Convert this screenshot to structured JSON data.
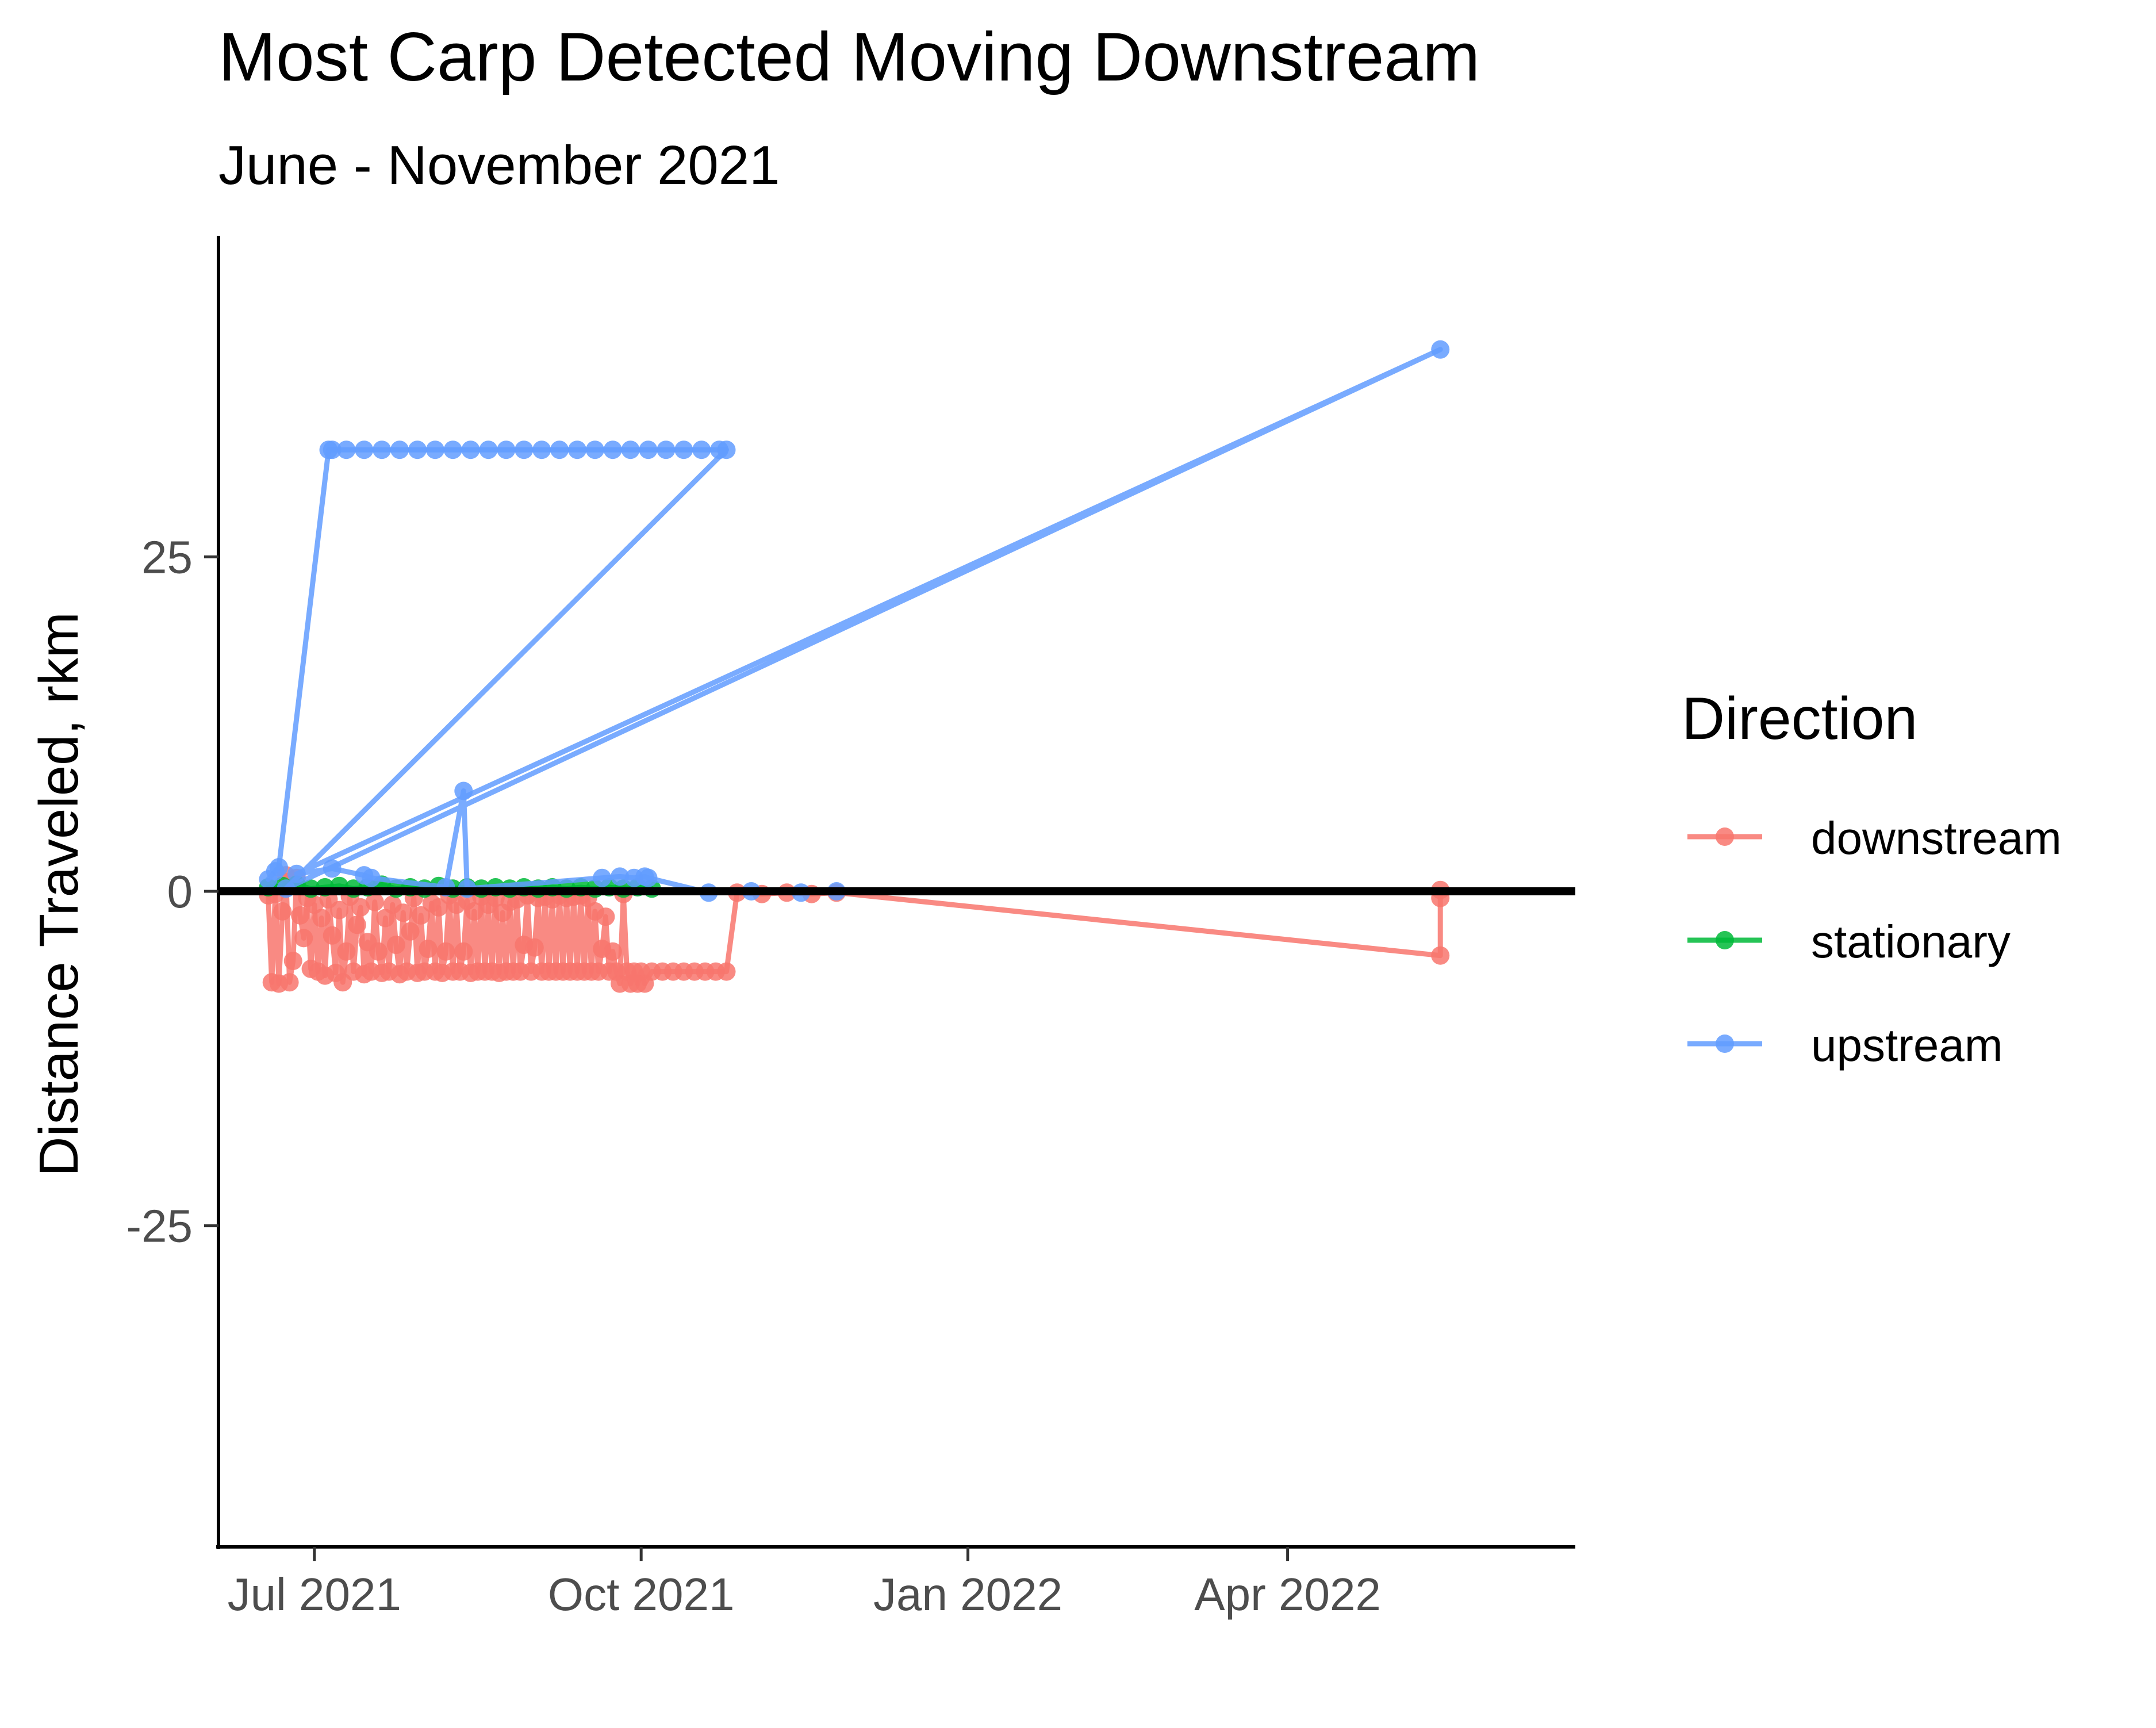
{
  "chart_data": {
    "type": "line",
    "title": "Most Carp Detected Moving Downstream",
    "subtitle": "June - November 2021",
    "ylabel": "Distance Traveled, rkm",
    "xlabel": "",
    "xlim": [
      "2021-06-04",
      "2022-06-21"
    ],
    "ylim": [
      -49,
      49
    ],
    "x_ticks": [
      {
        "date": "2021-07-01",
        "label": "Jul 2021"
      },
      {
        "date": "2021-10-01",
        "label": "Oct 2021"
      },
      {
        "date": "2022-01-01",
        "label": "Jan 2022"
      },
      {
        "date": "2022-04-01",
        "label": "Apr 2022"
      }
    ],
    "y_ticks": [
      {
        "value": 25,
        "label": "25"
      },
      {
        "value": 0,
        "label": "0"
      },
      {
        "value": -25,
        "label": "-25"
      }
    ],
    "reference_line": {
      "y": 0,
      "color": "#000000"
    },
    "grid": false,
    "legend": {
      "title": "Direction",
      "position": "right"
    },
    "series": [
      {
        "name": "downstream",
        "color": "#F8766D",
        "points": [
          {
            "x": "2021-06-18",
            "y": -0.3
          },
          {
            "x": "2021-06-19",
            "y": -6.8
          },
          {
            "x": "2021-06-20",
            "y": -0.2
          },
          {
            "x": "2021-06-21",
            "y": -6.9
          },
          {
            "x": "2021-06-22",
            "y": -1.5
          },
          {
            "x": "2021-06-23",
            "y": 1.2
          },
          {
            "x": "2021-06-24",
            "y": -6.8
          },
          {
            "x": "2021-06-25",
            "y": -5.2
          },
          {
            "x": "2021-06-26",
            "y": 1.0
          },
          {
            "x": "2021-06-27",
            "y": -1.8
          },
          {
            "x": "2021-06-28",
            "y": -3.5
          },
          {
            "x": "2021-06-29",
            "y": -0.5
          },
          {
            "x": "2021-06-30",
            "y": -5.8
          },
          {
            "x": "2021-07-01",
            "y": -1.0
          },
          {
            "x": "2021-07-02",
            "y": -6.0
          },
          {
            "x": "2021-07-03",
            "y": -2.0
          },
          {
            "x": "2021-07-04",
            "y": -6.3
          },
          {
            "x": "2021-07-05",
            "y": -0.6
          },
          {
            "x": "2021-07-06",
            "y": -3.3
          },
          {
            "x": "2021-07-07",
            "y": -6.1
          },
          {
            "x": "2021-07-08",
            "y": -1.4
          },
          {
            "x": "2021-07-09",
            "y": -6.8
          },
          {
            "x": "2021-07-10",
            "y": -4.5
          },
          {
            "x": "2021-07-11",
            "y": -0.4
          },
          {
            "x": "2021-07-12",
            "y": -6.0
          },
          {
            "x": "2021-07-13",
            "y": -2.5
          },
          {
            "x": "2021-07-14",
            "y": -1.2
          },
          {
            "x": "2021-07-15",
            "y": -6.2
          },
          {
            "x": "2021-07-16",
            "y": -3.8
          },
          {
            "x": "2021-07-17",
            "y": -6.0
          },
          {
            "x": "2021-07-18",
            "y": -0.8
          },
          {
            "x": "2021-07-19",
            "y": -4.5
          },
          {
            "x": "2021-07-20",
            "y": -6.1
          },
          {
            "x": "2021-07-21",
            "y": -2.0
          },
          {
            "x": "2021-07-22",
            "y": -6.0
          },
          {
            "x": "2021-07-23",
            "y": -1.0
          },
          {
            "x": "2021-07-24",
            "y": -4.0
          },
          {
            "x": "2021-07-25",
            "y": -6.2
          },
          {
            "x": "2021-07-26",
            "y": -1.6
          },
          {
            "x": "2021-07-27",
            "y": -6.0
          },
          {
            "x": "2021-07-28",
            "y": -3.0
          },
          {
            "x": "2021-07-29",
            "y": -0.5
          },
          {
            "x": "2021-07-30",
            "y": -6.1
          },
          {
            "x": "2021-07-31",
            "y": -1.8
          },
          {
            "x": "2021-08-01",
            "y": -6.0
          },
          {
            "x": "2021-08-02",
            "y": -4.3
          },
          {
            "x": "2021-08-03",
            "y": -0.9
          },
          {
            "x": "2021-08-04",
            "y": -6.0
          },
          {
            "x": "2021-08-05",
            "y": -1.2
          },
          {
            "x": "2021-08-06",
            "y": -6.1
          },
          {
            "x": "2021-08-07",
            "y": -4.5
          },
          {
            "x": "2021-08-08",
            "y": -0.3
          },
          {
            "x": "2021-08-09",
            "y": -6.0
          },
          {
            "x": "2021-08-10",
            "y": -1.0
          },
          {
            "x": "2021-08-11",
            "y": -6.0
          },
          {
            "x": "2021-08-12",
            "y": -4.5
          },
          {
            "x": "2021-08-13",
            "y": -0.7
          },
          {
            "x": "2021-08-14",
            "y": -6.1
          },
          {
            "x": "2021-08-15",
            "y": -1.5
          },
          {
            "x": "2021-08-16",
            "y": -6.0
          },
          {
            "x": "2021-08-17",
            "y": -0.4
          },
          {
            "x": "2021-08-18",
            "y": -6.0
          },
          {
            "x": "2021-08-19",
            "y": -1.0
          },
          {
            "x": "2021-08-20",
            "y": -6.0
          },
          {
            "x": "2021-08-21",
            "y": -0.5
          },
          {
            "x": "2021-08-22",
            "y": -6.1
          },
          {
            "x": "2021-08-23",
            "y": -1.6
          },
          {
            "x": "2021-08-24",
            "y": -6.0
          },
          {
            "x": "2021-08-25",
            "y": -0.8
          },
          {
            "x": "2021-08-26",
            "y": -6.0
          },
          {
            "x": "2021-08-27",
            "y": -0.6
          },
          {
            "x": "2021-08-28",
            "y": -6.0
          },
          {
            "x": "2021-08-29",
            "y": -4.0
          },
          {
            "x": "2021-08-30",
            "y": -0.3
          },
          {
            "x": "2021-08-31",
            "y": -6.0
          },
          {
            "x": "2021-09-01",
            "y": -4.2
          },
          {
            "x": "2021-09-02",
            "y": -0.5
          },
          {
            "x": "2021-09-03",
            "y": -6.0
          },
          {
            "x": "2021-09-04",
            "y": -0.4
          },
          {
            "x": "2021-09-05",
            "y": -6.0
          },
          {
            "x": "2021-09-06",
            "y": -0.6
          },
          {
            "x": "2021-09-07",
            "y": -6.0
          },
          {
            "x": "2021-09-08",
            "y": -0.3
          },
          {
            "x": "2021-09-09",
            "y": -6.0
          },
          {
            "x": "2021-09-10",
            "y": -0.5
          },
          {
            "x": "2021-09-11",
            "y": -6.0
          },
          {
            "x": "2021-09-12",
            "y": -0.4
          },
          {
            "x": "2021-09-13",
            "y": -6.0
          },
          {
            "x": "2021-09-14",
            "y": -0.3
          },
          {
            "x": "2021-09-15",
            "y": -6.0
          },
          {
            "x": "2021-09-16",
            "y": -0.5
          },
          {
            "x": "2021-09-17",
            "y": -6.0
          },
          {
            "x": "2021-09-18",
            "y": -1.5
          },
          {
            "x": "2021-09-19",
            "y": -6.0
          },
          {
            "x": "2021-09-20",
            "y": -4.3
          },
          {
            "x": "2021-09-21",
            "y": -1.9
          },
          {
            "x": "2021-09-22",
            "y": -6.0
          },
          {
            "x": "2021-09-23",
            "y": -4.5
          },
          {
            "x": "2021-09-24",
            "y": -6.0
          },
          {
            "x": "2021-09-25",
            "y": -6.9
          },
          {
            "x": "2021-09-26",
            "y": -0.2
          },
          {
            "x": "2021-09-27",
            "y": -6.0
          },
          {
            "x": "2021-09-28",
            "y": -6.9
          },
          {
            "x": "2021-09-29",
            "y": -6.0
          },
          {
            "x": "2021-09-30",
            "y": -6.9
          },
          {
            "x": "2021-10-01",
            "y": -6.0
          },
          {
            "x": "2021-10-02",
            "y": -6.9
          },
          {
            "x": "2021-10-04",
            "y": -6.0
          },
          {
            "x": "2021-10-07",
            "y": -6.0
          },
          {
            "x": "2021-10-10",
            "y": -6.0
          },
          {
            "x": "2021-10-13",
            "y": -6.0
          },
          {
            "x": "2021-10-16",
            "y": -6.0
          },
          {
            "x": "2021-10-19",
            "y": -6.0
          },
          {
            "x": "2021-10-22",
            "y": -6.0
          },
          {
            "x": "2021-10-25",
            "y": -6.0
          },
          {
            "x": "2021-10-28",
            "y": -0.1
          },
          {
            "x": "2021-11-04",
            "y": -0.2
          },
          {
            "x": "2021-11-11",
            "y": -0.1
          },
          {
            "x": "2021-11-18",
            "y": -0.2
          },
          {
            "x": "2021-11-25",
            "y": -0.1
          },
          {
            "x": "2022-05-14",
            "y": -4.8
          },
          {
            "x": "2022-05-14",
            "y": -0.5
          },
          {
            "x": "2022-05-14",
            "y": 0.1
          }
        ]
      },
      {
        "name": "stationary",
        "color": "#00BA38",
        "points": [
          {
            "x": "2021-06-18",
            "y": 0.3
          },
          {
            "x": "2021-06-22",
            "y": 0.4
          },
          {
            "x": "2021-06-26",
            "y": 0.5
          },
          {
            "x": "2021-06-30",
            "y": 0.2
          },
          {
            "x": "2021-07-04",
            "y": 0.3
          },
          {
            "x": "2021-07-08",
            "y": 0.4
          },
          {
            "x": "2021-07-12",
            "y": 0.2
          },
          {
            "x": "2021-07-16",
            "y": 0.3
          },
          {
            "x": "2021-07-20",
            "y": 0.5
          },
          {
            "x": "2021-07-24",
            "y": 0.2
          },
          {
            "x": "2021-07-28",
            "y": 0.3
          },
          {
            "x": "2021-08-01",
            "y": 0.2
          },
          {
            "x": "2021-08-05",
            "y": 0.4
          },
          {
            "x": "2021-08-09",
            "y": 0.2
          },
          {
            "x": "2021-08-13",
            "y": 0.3
          },
          {
            "x": "2021-08-17",
            "y": 0.2
          },
          {
            "x": "2021-08-21",
            "y": 0.3
          },
          {
            "x": "2021-08-25",
            "y": 0.2
          },
          {
            "x": "2021-08-29",
            "y": 0.3
          },
          {
            "x": "2021-09-02",
            "y": 0.2
          },
          {
            "x": "2021-09-06",
            "y": 0.3
          },
          {
            "x": "2021-09-10",
            "y": 0.2
          },
          {
            "x": "2021-09-14",
            "y": 0.3
          },
          {
            "x": "2021-09-18",
            "y": 0.2
          },
          {
            "x": "2021-09-22",
            "y": 0.3
          },
          {
            "x": "2021-09-26",
            "y": 0.2
          },
          {
            "x": "2021-09-30",
            "y": 0.3
          },
          {
            "x": "2021-10-04",
            "y": 0.2
          }
        ]
      },
      {
        "name": "upstream",
        "color": "#619CFF",
        "points": [
          {
            "x": "2021-06-18",
            "y": 0.9
          },
          {
            "x": "2021-06-20",
            "y": 1.5
          },
          {
            "x": "2021-06-21",
            "y": 1.8
          },
          {
            "x": "2021-07-05",
            "y": 33.0
          },
          {
            "x": "2021-07-06",
            "y": 33.0
          },
          {
            "x": "2021-07-10",
            "y": 33.0
          },
          {
            "x": "2021-07-15",
            "y": 33.0
          },
          {
            "x": "2021-07-20",
            "y": 33.0
          },
          {
            "x": "2021-07-25",
            "y": 33.0
          },
          {
            "x": "2021-07-30",
            "y": 33.0
          },
          {
            "x": "2021-08-04",
            "y": 33.0
          },
          {
            "x": "2021-08-09",
            "y": 33.0
          },
          {
            "x": "2021-08-14",
            "y": 33.0
          },
          {
            "x": "2021-08-19",
            "y": 33.0
          },
          {
            "x": "2021-08-24",
            "y": 33.0
          },
          {
            "x": "2021-08-29",
            "y": 33.0
          },
          {
            "x": "2021-09-03",
            "y": 33.0
          },
          {
            "x": "2021-09-08",
            "y": 33.0
          },
          {
            "x": "2021-09-13",
            "y": 33.0
          },
          {
            "x": "2021-09-18",
            "y": 33.0
          },
          {
            "x": "2021-09-23",
            "y": 33.0
          },
          {
            "x": "2021-09-28",
            "y": 33.0
          },
          {
            "x": "2021-10-03",
            "y": 33.0
          },
          {
            "x": "2021-10-08",
            "y": 33.0
          },
          {
            "x": "2021-10-13",
            "y": 33.0
          },
          {
            "x": "2021-10-18",
            "y": 33.0
          },
          {
            "x": "2021-10-23",
            "y": 33.0
          },
          {
            "x": "2021-10-25",
            "y": 33.0
          },
          {
            "x": "2021-06-23",
            "y": 0.2
          },
          {
            "x": "2022-05-14",
            "y": 40.5
          },
          {
            "x": "2021-06-26",
            "y": 1.3
          },
          {
            "x": "2021-07-06",
            "y": 1.7
          },
          {
            "x": "2021-07-15",
            "y": 1.2
          },
          {
            "x": "2021-07-17",
            "y": 1.0
          },
          {
            "x": "2021-08-07",
            "y": 0.3
          },
          {
            "x": "2021-08-12",
            "y": 7.5
          },
          {
            "x": "2021-08-13",
            "y": 0.2
          },
          {
            "x": "2021-09-20",
            "y": 1.0
          },
          {
            "x": "2021-09-25",
            "y": 1.1
          },
          {
            "x": "2021-09-29",
            "y": 1.0
          },
          {
            "x": "2021-10-02",
            "y": 1.1
          },
          {
            "x": "2021-10-03",
            "y": 1.0
          },
          {
            "x": "2021-10-20",
            "y": -0.1
          },
          {
            "x": "2021-11-01",
            "y": 0.0
          },
          {
            "x": "2021-11-15",
            "y": -0.1
          },
          {
            "x": "2021-11-25",
            "y": 0.0
          }
        ]
      }
    ]
  }
}
